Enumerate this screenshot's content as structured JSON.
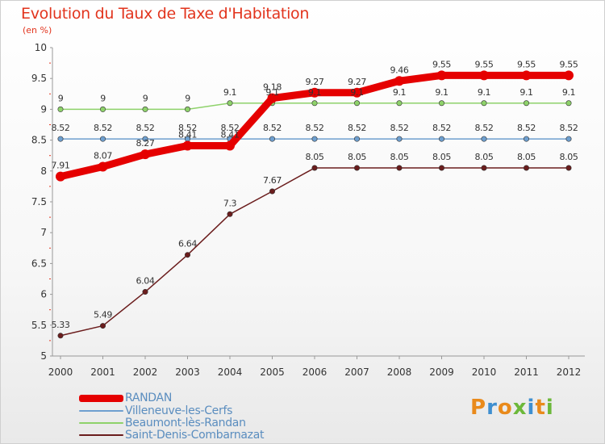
{
  "header": {
    "title": "Evolution du Taux de Taxe d'Habitation",
    "subtitle": "(en %)"
  },
  "chart_data": {
    "type": "line",
    "title": "Evolution du Taux de Taxe d'Habitation",
    "ylabel": "(en %)",
    "xlabel": "",
    "categories": [
      "2000",
      "2001",
      "2002",
      "2003",
      "2004",
      "2005",
      "2006",
      "2007",
      "2008",
      "2009",
      "2010",
      "2011",
      "2012"
    ],
    "ylim": [
      5,
      10
    ],
    "yticks": [
      "5",
      "5.5",
      "6",
      "6.5",
      "7",
      "7.5",
      "8",
      "8.5",
      "9",
      "9.5",
      "10"
    ],
    "grid": false,
    "legend_position": "bottom-left",
    "series": [
      {
        "name": "RANDAN",
        "color": "#e50000",
        "values": [
          7.91,
          8.07,
          8.27,
          8.41,
          8.41,
          9.18,
          9.27,
          9.27,
          9.46,
          9.55,
          9.55,
          9.55,
          9.55
        ],
        "labels": [
          "7.91",
          "8.07",
          "8.27",
          "8.41",
          "8.41",
          "9.18",
          "9.27",
          "9.27",
          "9.46",
          "9.55",
          "9.55",
          "9.55",
          "9.55"
        ]
      },
      {
        "name": "Villeneuve-les-Cerfs",
        "color": "#6e9fcf",
        "values": [
          8.52,
          8.52,
          8.52,
          8.52,
          8.52,
          8.52,
          8.52,
          8.52,
          8.52,
          8.52,
          8.52,
          8.52,
          8.52
        ],
        "labels": [
          "8.52",
          "8.52",
          "8.52",
          "8.52",
          "8.52",
          "8.52",
          "8.52",
          "8.52",
          "8.52",
          "8.52",
          "8.52",
          "8.52",
          "8.52"
        ]
      },
      {
        "name": "Beaumont-lès-Randan",
        "color": "#8ed26a",
        "values": [
          9,
          9,
          9,
          9,
          9.1,
          9.1,
          9.1,
          9.1,
          9.1,
          9.1,
          9.1,
          9.1,
          9.1
        ],
        "labels": [
          "9",
          "9",
          "9",
          "9",
          "9.1",
          "9.1",
          "9.1",
          "9.1",
          "9.1",
          "9.1",
          "9.1",
          "9.1",
          "9.1"
        ]
      },
      {
        "name": "Saint-Denis-Combarnazat",
        "color": "#6b1d1d",
        "values": [
          5.33,
          5.49,
          6.04,
          6.64,
          7.3,
          7.67,
          8.05,
          8.05,
          8.05,
          8.05,
          8.05,
          8.05,
          8.05
        ],
        "labels": [
          "5.33",
          "5.49",
          "6.04",
          "6.64",
          "7.3",
          "7.67",
          "8.05",
          "8.05",
          "8.05",
          "8.05",
          "8.05",
          "8.05",
          "8.05"
        ]
      }
    ]
  },
  "logo": {
    "letters": [
      "P",
      "r",
      "o",
      "x",
      "i",
      "t",
      "i"
    ],
    "colors": [
      "#e98a1b",
      "#3f8fd0",
      "#e98a1b",
      "#6cb83a",
      "#3f8fd0",
      "#e98a1b",
      "#6cb83a"
    ]
  }
}
